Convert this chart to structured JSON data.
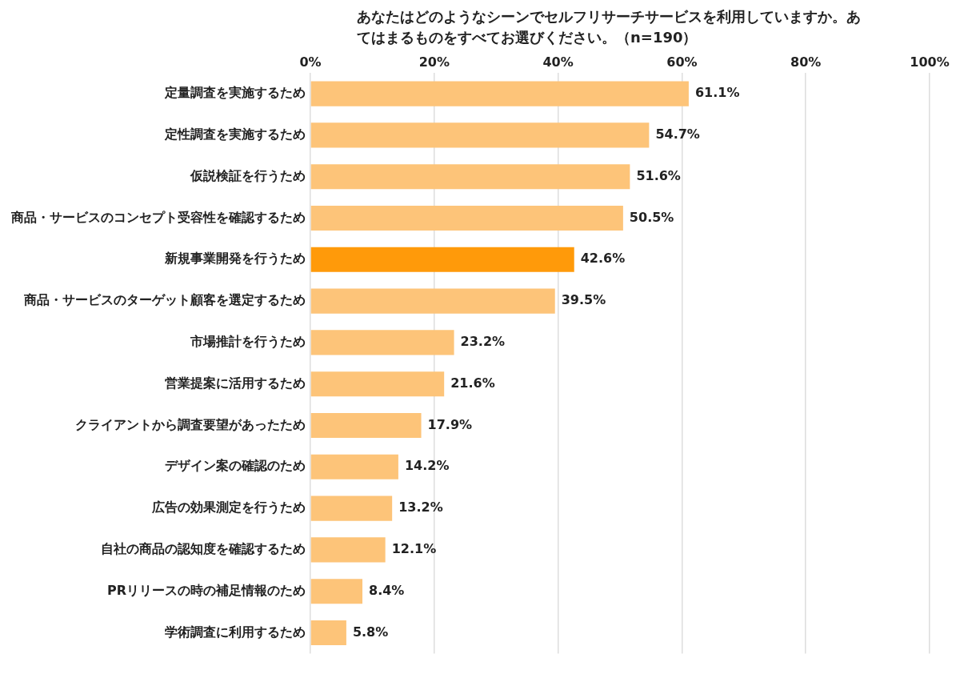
{
  "chart_data": {
    "type": "bar",
    "orientation": "horizontal",
    "title": "あなたはどのようなシーンでセルフリサーチサービスを利用していますか。あてはまるものをすべてお選びください。（n=190）",
    "categories": [
      "定量調査を実施するため",
      "定性調査を実施するため",
      "仮説検証を行うため",
      "商品・サービスのコンセプト受容性を確認するため",
      "新規事業開発を行うため",
      "商品・サービスのターゲット顧客を選定するため",
      "市場推計を行うため",
      "営業提案に活用するため",
      "クライアントから調査要望があったため",
      "デザイン案の確認のため",
      "広告の効果測定を行うため",
      "自社の商品の認知度を確認するため",
      "PRリリースの時の補足情報のため",
      "学術調査に利用するため"
    ],
    "values": [
      61.1,
      54.7,
      51.6,
      50.5,
      42.6,
      39.5,
      23.2,
      21.6,
      17.9,
      14.2,
      13.2,
      12.1,
      8.4,
      5.8
    ],
    "colors": [
      "#fdc479",
      "#fdc479",
      "#fdc479",
      "#fdc479",
      "#ff9a0a",
      "#fdc479",
      "#fdc479",
      "#fdc479",
      "#fdc479",
      "#fdc479",
      "#fdc479",
      "#fdc479",
      "#fdc479",
      "#fdc479"
    ],
    "value_labels": [
      "61.1%",
      "54.7%",
      "51.6%",
      "50.5%",
      "42.6%",
      "39.5%",
      "23.2%",
      "21.6%",
      "17.9%",
      "14.2%",
      "13.2%",
      "12.1%",
      "8.4%",
      "5.8%"
    ],
    "xlim": [
      0,
      100
    ],
    "xticks": [
      {
        "value": 0,
        "label": "0%"
      },
      {
        "value": 20,
        "label": "20%"
      },
      {
        "value": 40,
        "label": "40%"
      },
      {
        "value": 60,
        "label": "60%"
      },
      {
        "value": 80,
        "label": "80%"
      },
      {
        "value": 100,
        "label": "100%"
      }
    ],
    "grid": "x",
    "legend": false
  }
}
